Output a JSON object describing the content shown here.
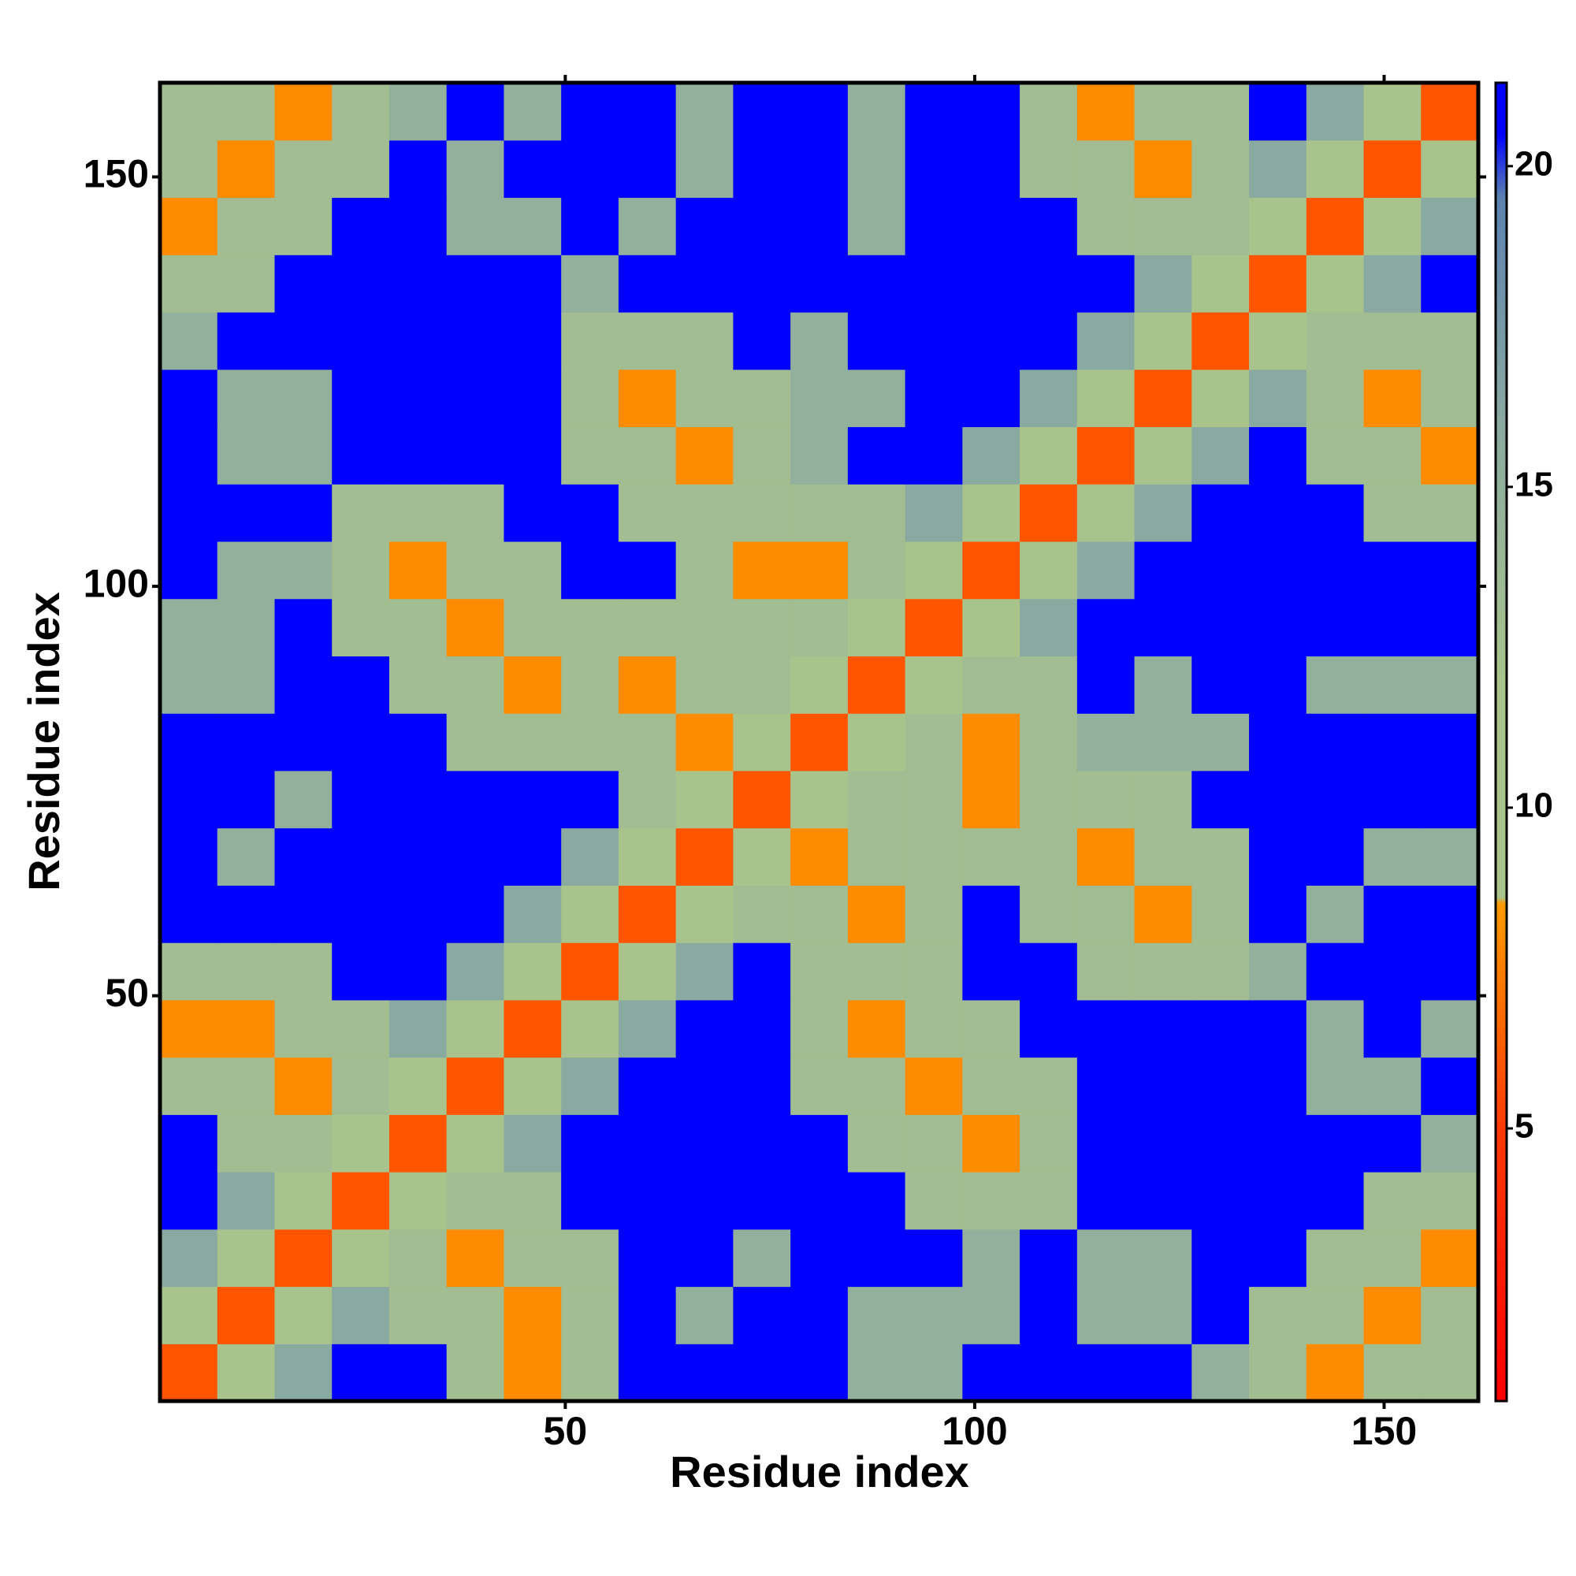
{
  "chart_data": {
    "type": "heatmap",
    "xlabel": "Residue index",
    "ylabel": "Residue index",
    "x": [
      4,
      11,
      18,
      25,
      32,
      39,
      46,
      53,
      60,
      67,
      74,
      81,
      88,
      95,
      102,
      109,
      116,
      123,
      130,
      137,
      144,
      151,
      158
    ],
    "y": [
      4,
      11,
      18,
      25,
      32,
      39,
      46,
      53,
      60,
      67,
      74,
      81,
      88,
      95,
      102,
      109,
      116,
      123,
      130,
      137,
      144,
      151,
      158
    ],
    "values": [
      [
        6,
        10,
        16,
        21,
        21,
        13,
        8,
        13,
        21,
        21,
        21,
        21,
        15,
        15,
        21,
        21,
        21,
        21,
        15,
        13,
        8,
        13,
        13
      ],
      [
        10,
        6,
        10,
        16,
        13,
        13,
        8,
        13,
        21,
        15,
        21,
        21,
        15,
        15,
        15,
        21,
        15,
        15,
        21,
        13,
        13,
        8,
        13
      ],
      [
        16,
        10,
        6,
        10,
        13,
        8,
        13,
        13,
        21,
        21,
        15,
        21,
        21,
        21,
        15,
        21,
        15,
        15,
        21,
        21,
        13,
        13,
        8
      ],
      [
        21,
        16,
        10,
        6,
        10,
        13,
        13,
        21,
        21,
        21,
        21,
        21,
        21,
        13,
        13,
        13,
        21,
        21,
        21,
        21,
        21,
        13,
        13
      ],
      [
        21,
        13,
        13,
        10,
        6,
        10,
        16,
        21,
        21,
        21,
        21,
        21,
        13,
        13,
        8,
        13,
        21,
        21,
        21,
        21,
        21,
        21,
        15
      ],
      [
        13,
        13,
        8,
        13,
        10,
        6,
        10,
        16,
        21,
        21,
        21,
        13,
        13,
        8,
        13,
        13,
        21,
        21,
        21,
        21,
        15,
        15,
        21
      ],
      [
        8,
        8,
        13,
        13,
        16,
        10,
        6,
        10,
        16,
        21,
        21,
        13,
        8,
        13,
        13,
        21,
        21,
        21,
        21,
        21,
        15,
        21,
        15
      ],
      [
        13,
        13,
        13,
        21,
        21,
        16,
        10,
        6,
        10,
        16,
        21,
        13,
        13,
        13,
        21,
        21,
        13,
        13,
        13,
        15,
        21,
        21,
        21
      ],
      [
        21,
        21,
        21,
        21,
        21,
        21,
        16,
        10,
        6,
        10,
        13,
        13,
        8,
        13,
        21,
        13,
        13,
        8,
        13,
        21,
        15,
        21,
        21
      ],
      [
        21,
        15,
        21,
        21,
        21,
        21,
        21,
        16,
        10,
        6,
        10,
        8,
        13,
        13,
        13,
        13,
        8,
        13,
        13,
        21,
        21,
        15,
        15
      ],
      [
        21,
        21,
        15,
        21,
        21,
        21,
        21,
        21,
        13,
        10,
        6,
        10,
        13,
        13,
        8,
        13,
        13,
        13,
        21,
        21,
        21,
        21,
        21
      ],
      [
        21,
        21,
        21,
        21,
        21,
        13,
        13,
        13,
        13,
        8,
        10,
        6,
        10,
        13,
        8,
        13,
        15,
        15,
        15,
        21,
        21,
        21,
        21
      ],
      [
        15,
        15,
        21,
        21,
        13,
        13,
        8,
        13,
        8,
        13,
        13,
        10,
        6,
        10,
        13,
        13,
        21,
        15,
        21,
        21,
        15,
        15,
        15
      ],
      [
        15,
        15,
        21,
        13,
        13,
        8,
        13,
        13,
        13,
        13,
        13,
        13,
        10,
        6,
        10,
        16,
        21,
        21,
        21,
        21,
        21,
        21,
        21
      ],
      [
        21,
        15,
        15,
        13,
        8,
        13,
        13,
        21,
        21,
        13,
        8,
        8,
        13,
        10,
        6,
        10,
        16,
        21,
        21,
        21,
        21,
        21,
        21
      ],
      [
        21,
        21,
        21,
        13,
        13,
        13,
        21,
        21,
        13,
        13,
        13,
        13,
        13,
        16,
        10,
        6,
        10,
        16,
        21,
        21,
        21,
        13,
        13
      ],
      [
        21,
        15,
        15,
        21,
        21,
        21,
        21,
        13,
        13,
        8,
        13,
        15,
        21,
        21,
        16,
        10,
        6,
        10,
        16,
        21,
        13,
        13,
        8
      ],
      [
        21,
        15,
        15,
        21,
        21,
        21,
        21,
        13,
        8,
        13,
        13,
        15,
        15,
        21,
        21,
        16,
        10,
        6,
        10,
        16,
        13,
        8,
        13
      ],
      [
        15,
        21,
        21,
        21,
        21,
        21,
        21,
        13,
        13,
        13,
        21,
        15,
        21,
        21,
        21,
        21,
        16,
        10,
        6,
        10,
        13,
        13,
        13
      ],
      [
        13,
        13,
        21,
        21,
        21,
        21,
        21,
        15,
        21,
        21,
        21,
        21,
        21,
        21,
        21,
        21,
        21,
        16,
        10,
        6,
        10,
        16,
        21
      ],
      [
        8,
        13,
        13,
        21,
        21,
        15,
        15,
        21,
        15,
        21,
        21,
        21,
        15,
        21,
        21,
        21,
        13,
        13,
        13,
        10,
        6,
        10,
        16
      ],
      [
        13,
        8,
        13,
        13,
        21,
        15,
        21,
        21,
        21,
        15,
        21,
        21,
        15,
        21,
        21,
        13,
        13,
        8,
        13,
        16,
        10,
        6,
        10
      ],
      [
        13,
        13,
        8,
        13,
        15,
        21,
        15,
        21,
        21,
        15,
        21,
        21,
        15,
        21,
        21,
        13,
        8,
        13,
        13,
        21,
        16,
        10,
        6
      ]
    ],
    "xlim": [
      0.5,
      161.5
    ],
    "ylim": [
      0.5,
      161.5
    ],
    "xticks": [
      50,
      100,
      150
    ],
    "yticks": [
      50,
      100,
      150
    ],
    "zlim": [
      0.75,
      21.3
    ],
    "zticks": [
      5,
      10,
      15,
      20
    ],
    "colorscale": [
      [
        0.75,
        "#ff0000"
      ],
      [
        5,
        "#ff3a00"
      ],
      [
        8.5,
        "#ff9a00"
      ],
      [
        8.6,
        "#a8c48c"
      ],
      [
        12,
        "#a8c48c"
      ],
      [
        16,
        "#8aa9a0"
      ],
      [
        19.5,
        "#5c82b0"
      ],
      [
        20.5,
        "#0000ff"
      ],
      [
        21.3,
        "#0000ff"
      ]
    ]
  }
}
